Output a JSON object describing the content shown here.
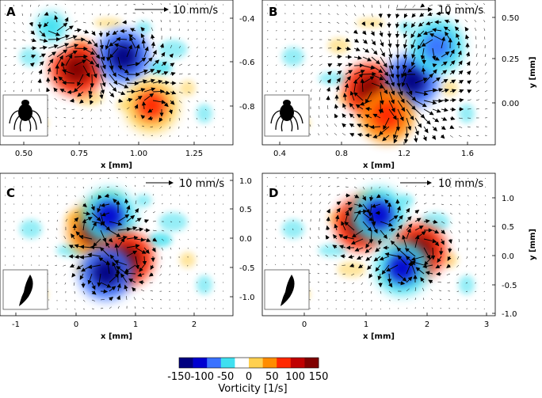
{
  "chart_data": [
    {
      "type": "vector_field_heatmap",
      "panel_label": "A",
      "xlabel": "x [mm]",
      "ylabel": "",
      "x_ticks": [
        "0.50",
        "0.75",
        "1.00",
        "1.25"
      ],
      "y_ticks": [
        "-0.4",
        "-0.6",
        "-0.8"
      ],
      "xlim": [
        0.4,
        1.4
      ],
      "ylim": [
        -0.96,
        -0.37
      ],
      "scale_label": "10 mm/s",
      "vortices": [
        {
          "x": 0.73,
          "y": -0.65,
          "vorticity": 150
        },
        {
          "x": 0.93,
          "y": -0.6,
          "vorticity": -150
        },
        {
          "x": 0.62,
          "y": -0.48,
          "vorticity": -60
        },
        {
          "x": 1.05,
          "y": -0.8,
          "vorticity": 60
        }
      ]
    },
    {
      "type": "vector_field_heatmap",
      "panel_label": "B",
      "xlabel": "x [mm]",
      "ylabel": "y [mm]",
      "x_ticks": [
        "0.4",
        "0.8",
        "1.2",
        "1.6"
      ],
      "y_ticks": [
        "0.50",
        "0.25",
        "0.00"
      ],
      "xlim": [
        0.25,
        1.65
      ],
      "ylim": [
        -0.22,
        0.62
      ],
      "scale_label": "10 mm/s",
      "vortices": [
        {
          "x": 0.9,
          "y": 0.1,
          "vorticity": 150
        },
        {
          "x": 1.15,
          "y": 0.15,
          "vorticity": -150
        },
        {
          "x": 1.0,
          "y": -0.05,
          "vorticity": 80
        },
        {
          "x": 1.3,
          "y": 0.35,
          "vorticity": -80
        }
      ]
    },
    {
      "type": "vector_field_heatmap",
      "panel_label": "C",
      "xlabel": "x [mm]",
      "ylabel": "",
      "x_ticks": [
        "-1",
        "0",
        "1",
        "2"
      ],
      "y_ticks": [
        "1.0",
        "0.5",
        "0.0",
        "-0.5",
        "-1.0"
      ],
      "xlim": [
        -1.3,
        2.65
      ],
      "ylim": [
        -1.3,
        1.2
      ],
      "scale_label": "10 mm/s",
      "vortices": [
        {
          "x": 0.3,
          "y": 0.2,
          "vorticity": 120
        },
        {
          "x": 0.55,
          "y": 0.45,
          "vorticity": -120
        },
        {
          "x": 0.85,
          "y": -0.3,
          "vorticity": 140
        },
        {
          "x": 0.5,
          "y": -0.55,
          "vorticity": -140
        }
      ]
    },
    {
      "type": "vector_field_heatmap",
      "panel_label": "D",
      "xlabel": "x [mm]",
      "ylabel": "y [mm]",
      "x_ticks": [
        "0",
        "1",
        "2",
        "3"
      ],
      "y_ticks": [
        "1.0",
        "0.5",
        "0.0",
        "-0.5",
        "-1.0"
      ],
      "xlim": [
        -0.8,
        3.2
      ],
      "ylim": [
        -1.1,
        1.3
      ],
      "scale_label": "10 mm/s",
      "vortices": [
        {
          "x": 0.9,
          "y": 0.45,
          "vorticity": 150
        },
        {
          "x": 1.2,
          "y": 0.6,
          "vorticity": -120
        },
        {
          "x": 1.9,
          "y": 0.0,
          "vorticity": 140
        },
        {
          "x": 1.6,
          "y": -0.3,
          "vorticity": -120
        }
      ]
    }
  ],
  "colorbar": {
    "label": "Vorticity [1/s]",
    "ticks": [
      "-150",
      "-100",
      "-50",
      "0",
      "50",
      "100",
      "150"
    ],
    "colors": [
      "#000080",
      "#0000d0",
      "#3a72ff",
      "#40e0f0",
      "#ffffff",
      "#ffd050",
      "#ff8c00",
      "#ff2800",
      "#c00000",
      "#800000"
    ]
  }
}
